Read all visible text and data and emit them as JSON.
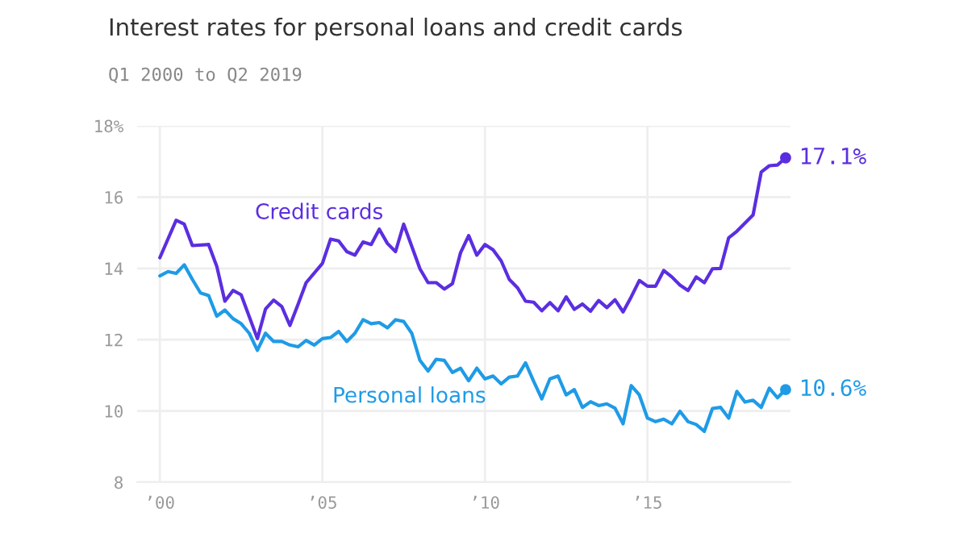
{
  "chart_data": {
    "type": "line",
    "title": "Interest rates for personal loans and credit cards",
    "subtitle": "Q1 2000 to Q2 2019",
    "series": [
      {
        "name": "Credit cards",
        "color": "#5b2ee0",
        "x": [
          2000.0,
          2000.5,
          2000.75,
          2001.0,
          2001.5,
          2001.75,
          2002.0,
          2002.25,
          2002.5,
          2003.0,
          2003.25,
          2003.5,
          2003.75,
          2004.0,
          2004.25,
          2004.5,
          2005.0,
          2005.25,
          2005.5,
          2005.75,
          2006.0,
          2006.25,
          2006.5,
          2006.75,
          2007.0,
          2007.25,
          2007.5,
          2008.0,
          2008.25,
          2008.5,
          2008.75,
          2009.0,
          2009.25,
          2009.5,
          2009.75,
          2010.0,
          2010.25,
          2010.5,
          2010.75,
          2011.0,
          2011.25,
          2011.5,
          2011.75,
          2012.0,
          2012.25,
          2012.5,
          2012.75,
          2013.0,
          2013.25,
          2013.5,
          2013.75,
          2014.0,
          2014.25,
          2014.5,
          2014.75,
          2015.0,
          2015.25,
          2015.5,
          2015.75,
          2016.0,
          2016.25,
          2016.5,
          2016.75,
          2017.0,
          2017.25,
          2017.5,
          2017.75,
          2018.25,
          2018.5,
          2018.75,
          2019.0,
          2019.25
        ],
        "values": [
          14.3,
          15.35,
          15.24,
          14.64,
          14.67,
          14.06,
          13.08,
          13.38,
          13.26,
          12.03,
          12.86,
          13.11,
          12.93,
          12.4,
          12.99,
          13.6,
          14.14,
          14.82,
          14.77,
          14.47,
          14.37,
          14.74,
          14.67,
          15.1,
          14.7,
          14.47,
          15.24,
          13.99,
          13.6,
          13.6,
          13.42,
          13.57,
          14.44,
          14.92,
          14.37,
          14.67,
          14.52,
          14.21,
          13.69,
          13.46,
          13.08,
          13.05,
          12.81,
          13.04,
          12.81,
          13.2,
          12.85,
          13.0,
          12.8,
          13.1,
          12.9,
          13.12,
          12.78,
          13.2,
          13.66,
          13.5,
          13.5,
          13.94,
          13.76,
          13.53,
          13.38,
          13.76,
          13.6,
          13.99,
          14.0,
          14.86,
          15.04,
          15.5,
          16.7,
          16.88,
          16.9,
          17.1
        ],
        "value_labels": [
          null,
          null,
          null,
          null,
          null,
          null,
          null,
          null,
          null,
          null,
          null,
          null,
          null,
          null,
          null,
          null,
          null,
          null,
          null,
          null,
          null,
          null,
          null,
          null,
          null,
          null,
          null,
          null,
          null,
          null,
          null,
          null,
          null,
          null,
          null,
          null,
          null,
          null,
          null,
          null,
          null,
          null,
          null,
          null,
          null,
          null,
          null,
          null,
          null,
          null,
          null,
          null,
          null,
          null,
          null,
          null,
          null,
          null,
          null,
          null,
          null,
          null,
          null,
          null,
          null,
          null,
          null,
          null,
          null,
          null,
          null,
          "17.1%"
        ]
      },
      {
        "name": "Personal loans",
        "color": "#1f9be6",
        "x": [
          2000.0,
          2000.25,
          2000.5,
          2000.75,
          2001.0,
          2001.25,
          2001.5,
          2001.75,
          2002.0,
          2002.25,
          2002.5,
          2002.75,
          2003.0,
          2003.25,
          2003.5,
          2003.75,
          2004.0,
          2004.25,
          2004.5,
          2004.75,
          2005.0,
          2005.25,
          2005.5,
          2005.75,
          2006.0,
          2006.25,
          2006.5,
          2006.75,
          2007.0,
          2007.25,
          2007.5,
          2007.75,
          2008.0,
          2008.25,
          2008.5,
          2008.75,
          2009.0,
          2009.25,
          2009.5,
          2009.75,
          2010.0,
          2010.25,
          2010.5,
          2010.75,
          2011.0,
          2011.25,
          2011.5,
          2011.75,
          2012.0,
          2012.25,
          2012.5,
          2012.75,
          2013.0,
          2013.25,
          2013.5,
          2013.75,
          2014.0,
          2014.25,
          2014.5,
          2014.75,
          2015.0,
          2015.25,
          2015.5,
          2015.75,
          2016.0,
          2016.25,
          2016.5,
          2016.75,
          2017.0,
          2017.25,
          2017.5,
          2017.75,
          2018.0,
          2018.25,
          2018.5,
          2018.75,
          2019.0,
          2019.25
        ],
        "values": [
          13.79,
          13.91,
          13.86,
          14.1,
          13.69,
          13.31,
          13.24,
          12.66,
          12.83,
          12.59,
          12.45,
          12.18,
          11.7,
          12.18,
          11.95,
          11.95,
          11.85,
          11.8,
          11.98,
          11.85,
          12.03,
          12.06,
          12.23,
          11.95,
          12.18,
          12.56,
          12.45,
          12.48,
          12.33,
          12.56,
          12.51,
          12.18,
          11.42,
          11.12,
          11.45,
          11.42,
          11.08,
          11.2,
          10.85,
          11.2,
          10.9,
          10.98,
          10.76,
          10.95,
          10.98,
          11.35,
          10.83,
          10.34,
          10.9,
          10.98,
          10.45,
          10.6,
          10.1,
          10.26,
          10.15,
          10.2,
          10.08,
          9.64,
          10.71,
          10.45,
          9.8,
          9.7,
          9.77,
          9.64,
          9.99,
          9.7,
          9.62,
          9.43,
          10.07,
          10.1,
          9.8,
          10.55,
          10.25,
          10.3,
          10.1,
          10.64,
          10.37,
          10.6
        ],
        "value_labels": [
          null,
          null,
          null,
          null,
          null,
          null,
          null,
          null,
          null,
          null,
          null,
          null,
          null,
          null,
          null,
          null,
          null,
          null,
          null,
          null,
          null,
          null,
          null,
          null,
          null,
          null,
          null,
          null,
          null,
          null,
          null,
          null,
          null,
          null,
          null,
          null,
          null,
          null,
          null,
          null,
          null,
          null,
          null,
          null,
          null,
          null,
          null,
          null,
          null,
          null,
          null,
          null,
          null,
          null,
          null,
          null,
          null,
          null,
          null,
          null,
          null,
          null,
          null,
          null,
          null,
          null,
          null,
          null,
          null,
          null,
          null,
          null,
          null,
          null,
          null,
          null,
          null,
          "10.6%"
        ]
      }
    ],
    "xlim": [
      1999.3,
      2019.4
    ],
    "xticks": [
      {
        "value": 2000,
        "label": "’00"
      },
      {
        "value": 2005,
        "label": "’05"
      },
      {
        "value": 2010,
        "label": "’10"
      },
      {
        "value": 2015,
        "label": "’15"
      }
    ],
    "ylim": [
      8,
      18
    ],
    "yticks": [
      8,
      10,
      12,
      14,
      16,
      {
        "value": 18,
        "label": "18%"
      }
    ],
    "grid": true,
    "marker": "none",
    "line_style": "solid"
  }
}
